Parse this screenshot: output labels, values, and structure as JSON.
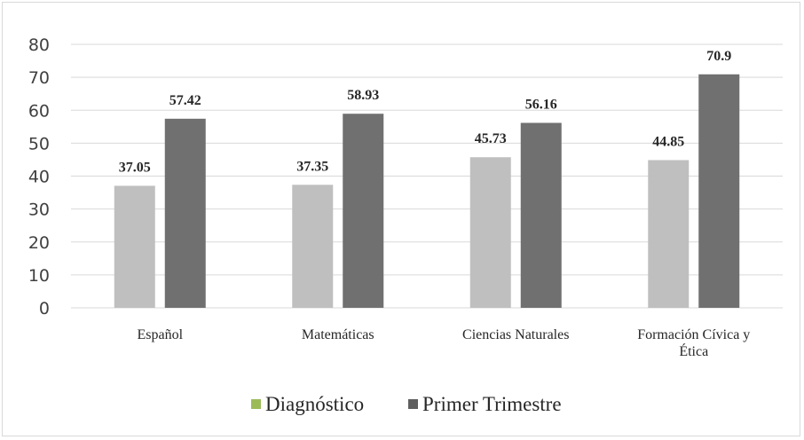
{
  "chart_data": {
    "type": "bar",
    "categories": [
      [
        "Español"
      ],
      [
        "Matemáticas"
      ],
      [
        "Ciencias Naturales"
      ],
      [
        "Formación Cívica y",
        "Ética"
      ]
    ],
    "series": [
      {
        "name": "Diagnóstico",
        "values": [
          37.05,
          37.35,
          45.73,
          44.85
        ],
        "labels": [
          "37.05",
          "37.35",
          "45.73",
          "44.85"
        ],
        "color": "#bfbfbf",
        "legend_color": "#9bbb59"
      },
      {
        "name": "Primer Trimestre",
        "values": [
          57.42,
          58.93,
          56.16,
          70.9
        ],
        "labels": [
          "57.42",
          "58.93",
          "56.16",
          "70.9"
        ],
        "color": "#707070",
        "legend_color": "#5f5f5f"
      }
    ],
    "ylim": [
      0,
      80
    ],
    "yticks": [
      0,
      10,
      20,
      30,
      40,
      50,
      60,
      70,
      80
    ],
    "grid": true,
    "legend_position": "bottom"
  }
}
